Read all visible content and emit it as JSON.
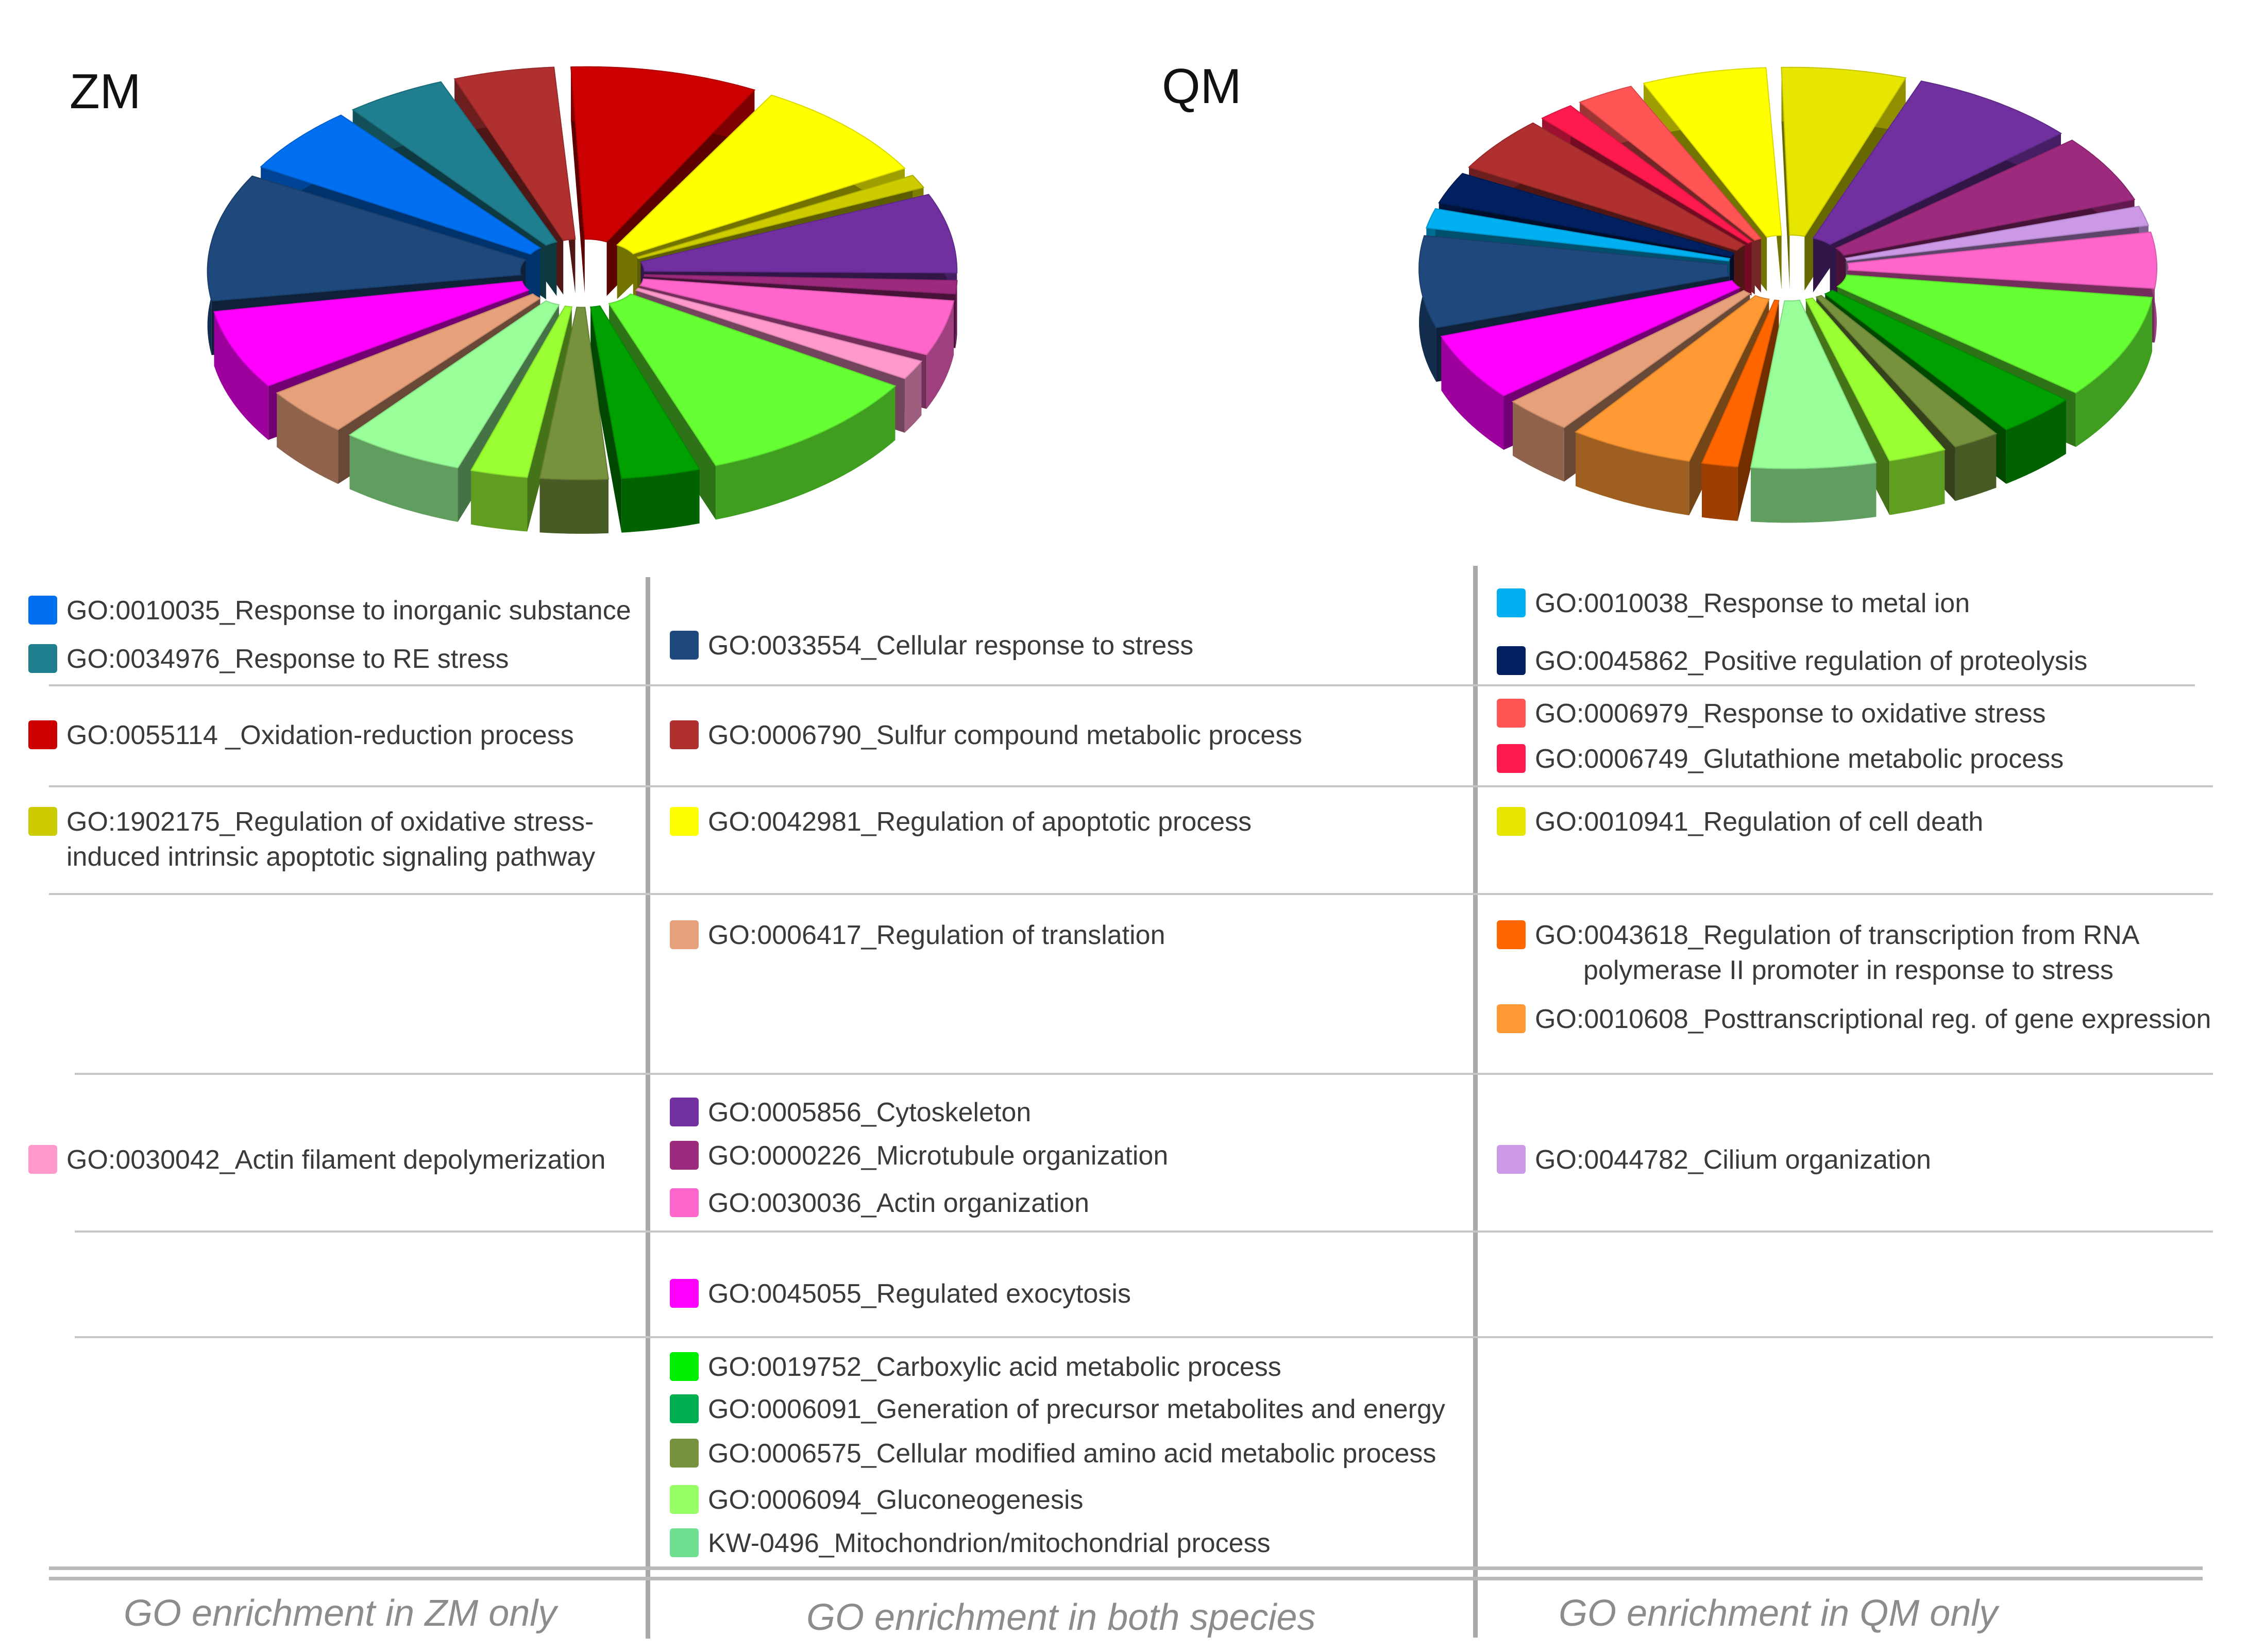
{
  "chart_data": [
    {
      "type": "pie",
      "title": "ZM",
      "slices": [
        {
          "label": "GO:0055114_Oxidation-reduction process",
          "value": 9,
          "color": "#cc0000"
        },
        {
          "label": "GO:0042981_Regulation of apoptotic process",
          "value": 9,
          "color": "#ffff00"
        },
        {
          "label": "GO:1902175_Regulation of oxidative stress-induced intrinsic apoptotic signaling pathway",
          "value": 1.5,
          "color": "#cccc00"
        },
        {
          "label": "GO:0005856_Cytoskeleton",
          "value": 7,
          "color": "#7030a0"
        },
        {
          "label": "GO:0000226_Microtubule organization",
          "value": 1.5,
          "color": "#9e2a7e"
        },
        {
          "label": "GO:0030036_Actin organization",
          "value": 5,
          "color": "#ff66cc"
        },
        {
          "label": "GO:0030042_Actin filament depolymerization",
          "value": 2,
          "color": "#ff99cc"
        },
        {
          "label": "GO:0019752_Carboxylic acid metabolic process",
          "value": 11,
          "color": "#66ff33"
        },
        {
          "label": "GO:0006091_Generation of precursor metabolites and energy",
          "value": 4,
          "color": "#00a000"
        },
        {
          "label": "GO:0006575_Cellular modified amino acid metabolic process",
          "value": 3.5,
          "color": "#76923c"
        },
        {
          "label": "GO:0006094_Gluconeogenesis",
          "value": 3,
          "color": "#99ff33"
        },
        {
          "label": "KW-0496_Mitochondrion/mitochondrial process",
          "value": 6,
          "color": "#99ff99"
        },
        {
          "label": "GO:0006417_Regulation of translation",
          "value": 4.5,
          "color": "#e6a07a"
        },
        {
          "label": "GO:0045055_Regulated exocytosis",
          "value": 7,
          "color": "#ff00ff"
        },
        {
          "label": "GO:0033554_Cellular response to stress",
          "value": 11,
          "color": "#1f497d"
        },
        {
          "label": "GO:0010035_Response to inorganic substance",
          "value": 6,
          "color": "#0070f0"
        },
        {
          "label": "GO:0034976_Response to RE stress",
          "value": 5,
          "color": "#1f7f8f"
        },
        {
          "label": "GO:0006790_Sulfur compound metabolic process",
          "value": 5,
          "color": "#b03030"
        }
      ]
    },
    {
      "type": "pie",
      "title": "QM",
      "slices": [
        {
          "label": "GO:0010941_Regulation of cell death",
          "value": 6,
          "color": "#e6e600"
        },
        {
          "label": "GO:0005856_Cytoskeleton",
          "value": 8,
          "color": "#7030a0"
        },
        {
          "label": "GO:0000226_Microtubule organization",
          "value": 6,
          "color": "#9e2a7e"
        },
        {
          "label": "GO:0044782_Cilium organization",
          "value": 2,
          "color": "#cc99e6"
        },
        {
          "label": "GO:0030036_Actin organization",
          "value": 5,
          "color": "#ff66cc"
        },
        {
          "label": "GO:0019752_Carboxylic acid metabolic process",
          "value": 9,
          "color": "#66ff33"
        },
        {
          "label": "GO:0006091_Generation of precursor metabolites and energy",
          "value": 4,
          "color": "#00a000"
        },
        {
          "label": "GO:0006575_Cellular modified amino acid metabolic process",
          "value": 2.5,
          "color": "#76923c"
        },
        {
          "label": "GO:0006094_Gluconeogenesis",
          "value": 3,
          "color": "#99ff33"
        },
        {
          "label": "KW-0496_Mitochondrion/mitochondrial process",
          "value": 6,
          "color": "#99ff99"
        },
        {
          "label": "GO:0043618_Regulation of transcription from RNA polymerase II promoter in response to stress",
          "value": 2,
          "color": "#ff6600"
        },
        {
          "label": "GO:0010608_Posttranscriptional reg. of gene expression",
          "value": 6,
          "color": "#ff9933"
        },
        {
          "label": "GO:0006417_Regulation of translation",
          "value": 3.5,
          "color": "#e6a07a"
        },
        {
          "label": "GO:0045055_Regulated exocytosis",
          "value": 6,
          "color": "#ff00ff"
        },
        {
          "label": "GO:0033554_Cellular response to stress",
          "value": 8,
          "color": "#1f497d"
        },
        {
          "label": "GO:0010038_Response to metal ion",
          "value": 2,
          "color": "#00b0f0"
        },
        {
          "label": "GO:0045862_Positive regulation of proteolysis",
          "value": 3,
          "color": "#002060"
        },
        {
          "label": "GO:0006790_Sulfur compound metabolic process",
          "value": 5,
          "color": "#b03030"
        },
        {
          "label": "GO:0006749_Glutathione metabolic process",
          "value": 2,
          "color": "#ff1a4d"
        },
        {
          "label": "GO:0006979_Response to oxidative stress",
          "value": 3,
          "color": "#ff5555"
        },
        {
          "label": "GO:0042981_Regulation of apoptotic process",
          "value": 6,
          "color": "#ffff00"
        }
      ]
    }
  ],
  "legend": {
    "zm_only": [
      {
        "label": "GO:0010035_Response to inorganic substance",
        "color": "#0070f0"
      },
      {
        "label": "GO:0034976_Response to RE stress",
        "color": "#1f7f8f"
      },
      {
        "label": "GO:0055114 _Oxidation-reduction process",
        "color": "#cc0000"
      },
      {
        "label": "GO:1902175_Regulation of oxidative stress-",
        "label2": "induced intrinsic apoptotic signaling pathway",
        "color": "#cccc00"
      },
      {
        "label": "GO:0030042_Actin filament depolymerization",
        "color": "#ff99cc"
      }
    ],
    "both": [
      {
        "label": "GO:0033554_Cellular response to stress",
        "color": "#1f497d"
      },
      {
        "label": "GO:0006790_Sulfur compound metabolic process",
        "color": "#b03030"
      },
      {
        "label": "GO:0042981_Regulation of apoptotic process",
        "color": "#ffff00"
      },
      {
        "label": "GO:0006417_Regulation of translation",
        "color": "#e6a07a"
      },
      {
        "label": "GO:0005856_Cytoskeleton",
        "color": "#7030a0"
      },
      {
        "label": "GO:0000226_Microtubule organization",
        "color": "#9e2a7e"
      },
      {
        "label": "GO:0030036_Actin organization",
        "color": "#ff66cc"
      },
      {
        "label": "GO:0045055_Regulated exocytosis",
        "color": "#ff00ff"
      },
      {
        "label": "GO:0019752_Carboxylic acid metabolic process",
        "color": "#00ee00"
      },
      {
        "label": "GO:0006091_Generation of precursor metabolites and energy",
        "color": "#00b050"
      },
      {
        "label": "GO:0006575_Cellular modified amino acid metabolic process",
        "color": "#76923c"
      },
      {
        "label": "GO:0006094_Gluconeogenesis",
        "color": "#99ff66"
      },
      {
        "label": "KW-0496_Mitochondrion/mitochondrial process",
        "color": "#6ee08f"
      }
    ],
    "qm_only": [
      {
        "label": "GO:0010038_Response to metal ion",
        "color": "#00b0f0"
      },
      {
        "label": "GO:0045862_Positive regulation of proteolysis",
        "color": "#002060"
      },
      {
        "label": "GO:0006979_Response to oxidative stress",
        "color": "#ff5555"
      },
      {
        "label": "GO:0006749_Glutathione metabolic process",
        "color": "#ff1a4d"
      },
      {
        "label": "GO:0010941_Regulation of cell death",
        "color": "#e6e600"
      },
      {
        "label": "GO:0043618_Regulation of transcription from RNA",
        "label2": "polymerase II promoter in response to stress",
        "color": "#ff6600"
      },
      {
        "label": "GO:0010608_Posttranscriptional reg. of gene expression",
        "color": "#ff9933"
      },
      {
        "label": "GO:0044782_Cilium organization",
        "color": "#cc99e6"
      }
    ]
  },
  "footer": {
    "zm_only": "GO enrichment in ZM only",
    "both": "GO enrichment in both species",
    "qm_only": "GO enrichment in QM only"
  }
}
